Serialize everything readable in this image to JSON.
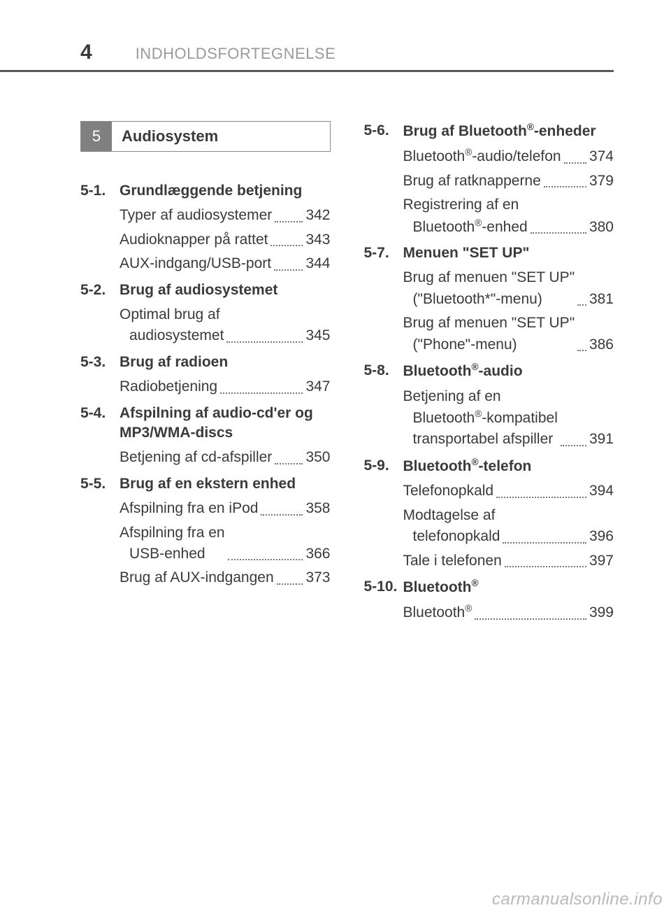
{
  "header": {
    "page_number": "4",
    "title": "INDHOLDSFORTEGNELSE"
  },
  "section_tab": {
    "number": "5",
    "label": "Audiosystem"
  },
  "left": [
    {
      "num": "5-1.",
      "title": "Grundlæggende betjening",
      "entries": [
        {
          "text": "Typer af audiosystemer",
          "page": "342"
        },
        {
          "text": "Audioknapper på rattet",
          "page": "343"
        },
        {
          "text": "AUX-indgang/USB-port",
          "page": "344"
        }
      ]
    },
    {
      "num": "5-2.",
      "title": "Brug af audiosystemet",
      "entries": [
        {
          "text": "Optimal brug af",
          "cont": "audiosystemet",
          "page": "345"
        }
      ]
    },
    {
      "num": "5-3.",
      "title": "Brug af radioen",
      "entries": [
        {
          "text": "Radiobetjening",
          "page": "347"
        }
      ]
    },
    {
      "num": "5-4.",
      "title": "Afspilning af audio-cd'er og MP3/WMA-discs",
      "entries": [
        {
          "text": "Betjening af cd-afspiller",
          "page": "350"
        }
      ]
    },
    {
      "num": "5-5.",
      "title": "Brug af en ekstern enhed",
      "entries": [
        {
          "text": "Afspilning fra en iPod",
          "page": "358"
        },
        {
          "text": "Afspilning fra en",
          "cont": "USB-enhed",
          "page": "366"
        },
        {
          "text": "Brug af AUX-indgangen",
          "page": "373"
        }
      ]
    }
  ],
  "right": [
    {
      "num": "5-6.",
      "title_html": "Brug af Bluetooth<sup class='reg'>®</sup>-enheder",
      "entries": [
        {
          "html": "Bluetooth<sup class='reg'>®</sup>-audio/telefon",
          "page": "374"
        },
        {
          "text": "Brug af ratknapperne",
          "page": "379"
        },
        {
          "text": "Registrering af en",
          "cont_html": "Bluetooth<sup class='reg'>®</sup>-enhed",
          "page": "380"
        }
      ]
    },
    {
      "num": "5-7.",
      "title": "Menuen \"SET UP\"",
      "entries": [
        {
          "text": "Brug af menuen \"SET UP\"",
          "cont": "(\"Bluetooth*\"-menu)",
          "page": "381"
        },
        {
          "text": "Brug af menuen \"SET UP\"",
          "cont": "(\"Phone\"-menu)",
          "page": "386"
        }
      ]
    },
    {
      "num": "5-8.",
      "title_html": "Bluetooth<sup class='reg'>®</sup>-audio",
      "entries": [
        {
          "text": "Betjening af en",
          "cont_html": "Bluetooth<sup class='reg'>®</sup>-kompatibel<br>transportabel afspiller",
          "page": "391"
        }
      ]
    },
    {
      "num": "5-9.",
      "title_html": "Bluetooth<sup class='reg'>®</sup>-telefon",
      "entries": [
        {
          "text": "Telefonopkald",
          "page": "394"
        },
        {
          "text": "Modtagelse af",
          "cont": "telefonopkald",
          "page": "396"
        },
        {
          "text": "Tale i telefonen",
          "page": "397"
        }
      ]
    },
    {
      "num": "5-10.",
      "title_html": "Bluetooth<sup class='reg'>®</sup>",
      "entries": [
        {
          "html": "Bluetooth<sup class='reg'>®</sup>",
          "page": "399"
        }
      ]
    }
  ],
  "watermark": "carmanualsonline.info"
}
